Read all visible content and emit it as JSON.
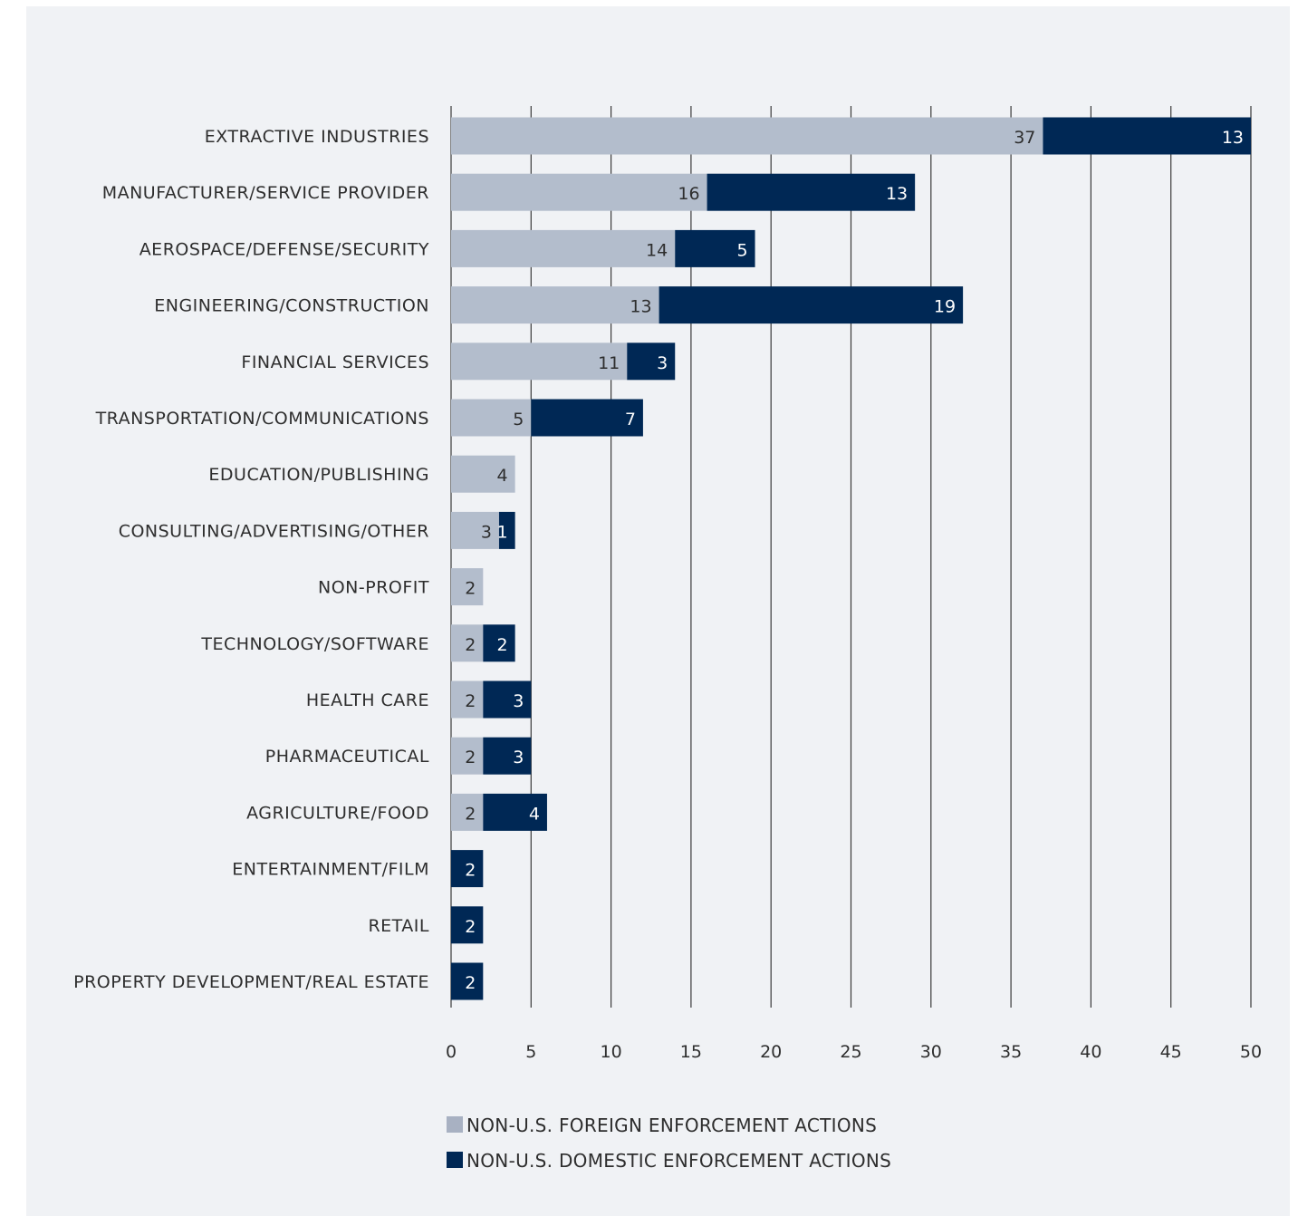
{
  "chart_data": {
    "type": "bar",
    "orientation": "horizontal",
    "stacked": true,
    "categories": [
      "EXTRACTIVE INDUSTRIES",
      "MANUFACTURER/SERVICE PROVIDER",
      "AEROSPACE/DEFENSE/SECURITY",
      "ENGINEERING/CONSTRUCTION",
      "FINANCIAL SERVICES",
      "TRANSPORTATION/COMMUNICATIONS",
      "EDUCATION/PUBLISHING",
      "CONSULTING/ADVERTISING/OTHER",
      "NON-PROFIT",
      "TECHNOLOGY/SOFTWARE",
      "HEALTH CARE",
      "PHARMACEUTICAL",
      "AGRICULTURE/FOOD",
      "ENTERTAINMENT/FILM",
      "RETAIL",
      "PROPERTY DEVELOPMENT/REAL ESTATE"
    ],
    "series": [
      {
        "name": "NON-U.S. FOREIGN ENFORCEMENT ACTIONS",
        "color": "#b3bdcc",
        "label_color": "#2e2e2e",
        "values": [
          37,
          16,
          14,
          13,
          11,
          5,
          4,
          3,
          2,
          2,
          2,
          2,
          2,
          0,
          0,
          0
        ]
      },
      {
        "name": "NON-U.S. DOMESTIC ENFORCEMENT ACTIONS",
        "color": "#002855",
        "label_color": "#ffffff",
        "values": [
          13,
          13,
          5,
          19,
          3,
          7,
          0,
          1,
          0,
          2,
          3,
          3,
          4,
          2,
          2,
          2
        ]
      }
    ],
    "xlim": [
      0,
      50
    ],
    "xticks": [
      "0",
      "5",
      "10",
      "15",
      "20",
      "25",
      "30",
      "35",
      "40",
      "45",
      "50"
    ],
    "grid": true,
    "legend_position": "bottom",
    "legend_colors": [
      "#a8b1c2",
      "#002855"
    ]
  }
}
